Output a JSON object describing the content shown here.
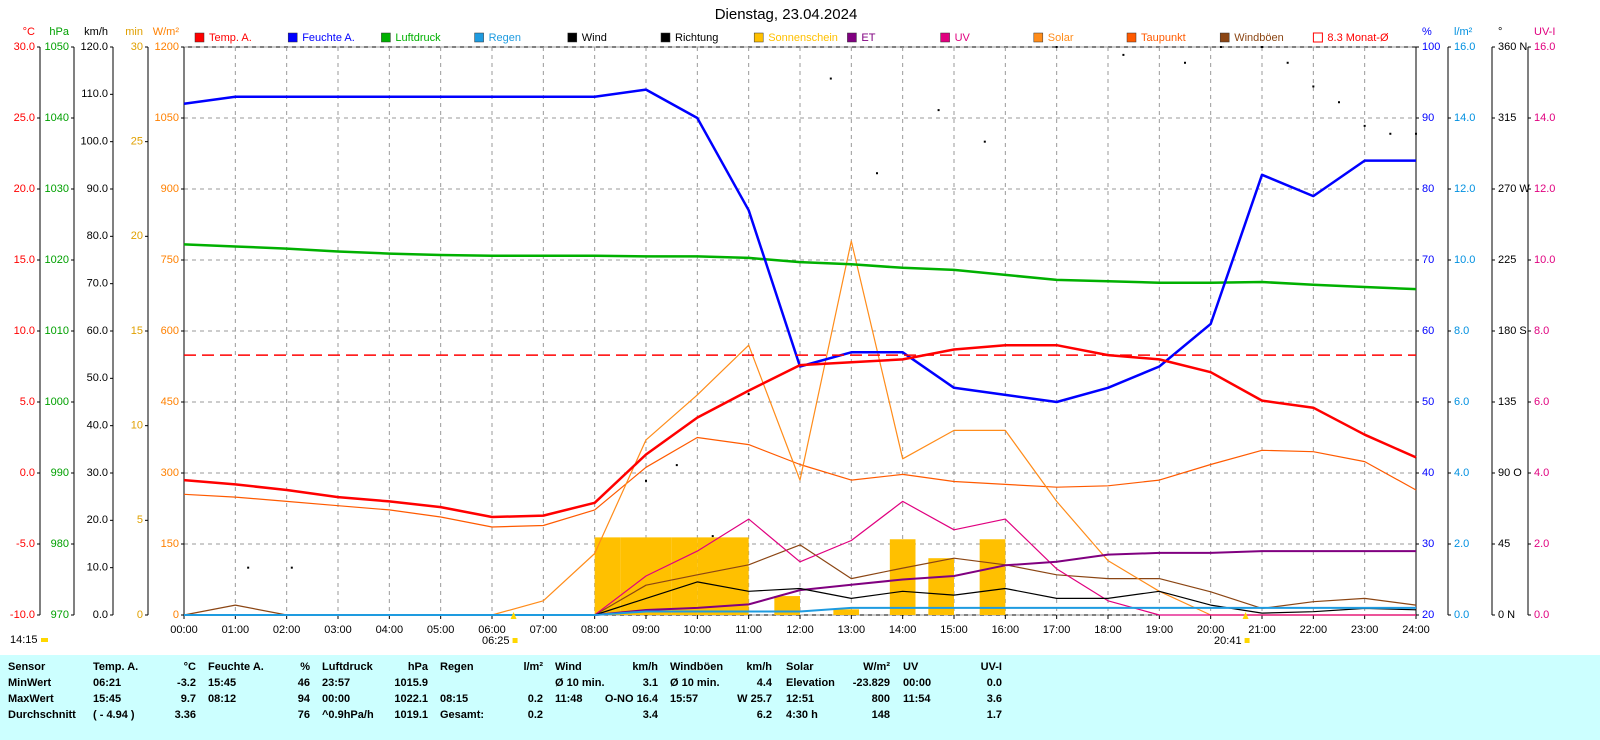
{
  "chart_data": {
    "type": "line",
    "title": "Dienstag, 23.04.2024",
    "updated": "14:15",
    "grid": true,
    "xlim": [
      0,
      24
    ],
    "xticks": [
      {
        "value": 0,
        "label": "00:00"
      },
      {
        "value": 1,
        "label": "01:00"
      },
      {
        "value": 2,
        "label": "02:00"
      },
      {
        "value": 3,
        "label": "03:00"
      },
      {
        "value": 4,
        "label": "04:00"
      },
      {
        "value": 5,
        "label": "05:00"
      },
      {
        "value": 6,
        "label": "06:00"
      },
      {
        "value": 7,
        "label": "07:00"
      },
      {
        "value": 8,
        "label": "08:00"
      },
      {
        "value": 9,
        "label": "09:00"
      },
      {
        "value": 10,
        "label": "10:00"
      },
      {
        "value": 11,
        "label": "11:00"
      },
      {
        "value": 12,
        "label": "12:00"
      },
      {
        "value": 13,
        "label": "13:00"
      },
      {
        "value": 14,
        "label": "14:00"
      },
      {
        "value": 15,
        "label": "15:00"
      },
      {
        "value": 16,
        "label": "16:00"
      },
      {
        "value": 17,
        "label": "17:00"
      },
      {
        "value": 18,
        "label": "18:00"
      },
      {
        "value": 19,
        "label": "19:00"
      },
      {
        "value": 20,
        "label": "20:00"
      },
      {
        "value": 21,
        "label": "21:00"
      },
      {
        "value": 22,
        "label": "22:00"
      },
      {
        "value": 23,
        "label": "23:00"
      },
      {
        "value": 24,
        "label": "24:00"
      }
    ],
    "axes": [
      {
        "unit": "°C",
        "color": "#ff0000",
        "lim": [
          -10,
          30
        ],
        "ticks": [
          {
            "value": -10,
            "label": "-10.0"
          },
          {
            "value": -5,
            "label": "-5.0"
          },
          {
            "value": 0,
            "label": "0.0"
          },
          {
            "value": 5,
            "label": "5.0"
          },
          {
            "value": 10,
            "label": "10.0"
          },
          {
            "value": 15,
            "label": "15.0"
          },
          {
            "value": 20,
            "label": "20.0"
          },
          {
            "value": 25,
            "label": "25.0"
          },
          {
            "value": 30,
            "label": "30.0"
          }
        ]
      },
      {
        "unit": "hPa",
        "color": "#00a000",
        "lim": [
          970,
          1050
        ],
        "ticks": [
          970,
          980,
          990,
          1000,
          1010,
          1020,
          1030,
          1040,
          1050
        ]
      },
      {
        "unit": "km/h",
        "color": "#000000",
        "lim": [
          0,
          120
        ],
        "ticks": [
          {
            "value": 0,
            "label": "0.0"
          },
          {
            "value": 10,
            "label": "10.0"
          },
          {
            "value": 20,
            "label": "20.0"
          },
          {
            "value": 30,
            "label": "30.0"
          },
          {
            "value": 40,
            "label": "40.0"
          },
          {
            "value": 50,
            "label": "50.0"
          },
          {
            "value": 60,
            "label": "60.0"
          },
          {
            "value": 70,
            "label": "70.0"
          },
          {
            "value": 80,
            "label": "80.0"
          },
          {
            "value": 90,
            "label": "90.0"
          },
          {
            "value": 100,
            "label": "100.0"
          },
          {
            "value": 110,
            "label": "110.0"
          },
          {
            "value": 120,
            "label": "120.0"
          }
        ]
      },
      {
        "unit": "min",
        "color": "#e0a000",
        "lim": [
          0,
          30
        ],
        "ticks": [
          0,
          5,
          10,
          15,
          20,
          25,
          30
        ]
      },
      {
        "unit": "W/m²",
        "color": "#ff8000",
        "lim": [
          0,
          1200
        ],
        "ticks": [
          0,
          150,
          300,
          450,
          600,
          750,
          900,
          1050,
          1200
        ]
      },
      {
        "unit": "%",
        "color": "#0000ff",
        "lim": [
          20,
          100
        ],
        "ticks": [
          20,
          30,
          40,
          50,
          60,
          70,
          80,
          90,
          100
        ]
      },
      {
        "unit": "l/m²",
        "color": "#0090e0",
        "lim": [
          0,
          16
        ],
        "ticks": [
          {
            "value": 0,
            "label": "0.0"
          },
          {
            "value": 2,
            "label": "2.0"
          },
          {
            "value": 4,
            "label": "4.0"
          },
          {
            "value": 6,
            "label": "6.0"
          },
          {
            "value": 8,
            "label": "8.0"
          },
          {
            "value": 10,
            "label": "10.0"
          },
          {
            "value": 12,
            "label": "12.0"
          },
          {
            "value": 14,
            "label": "14.0"
          },
          {
            "value": 16,
            "label": "16.0"
          }
        ]
      },
      {
        "unit": "°",
        "color": "#000000",
        "lim": [
          0,
          360
        ],
        "ticks": [
          {
            "value": 0,
            "label": "0 N"
          },
          45,
          {
            "value": 90,
            "label": "90 O"
          },
          135,
          {
            "value": 180,
            "label": "180 S"
          },
          225,
          {
            "value": 270,
            "label": "270 W"
          },
          315,
          {
            "value": 360,
            "label": "360 N"
          }
        ]
      },
      {
        "unit": "UV-I",
        "color": "#e0007f",
        "lim": [
          0,
          16
        ],
        "ticks": [
          {
            "value": 0,
            "label": "0.0"
          },
          {
            "value": 2,
            "label": "2.0"
          },
          {
            "value": 4,
            "label": "4.0"
          },
          {
            "value": 6,
            "label": "6.0"
          },
          {
            "value": 8,
            "label": "8.0"
          },
          {
            "value": 10,
            "label": "10.0"
          },
          {
            "value": 12,
            "label": "12.0"
          },
          {
            "value": 14,
            "label": "14.0"
          },
          {
            "value": 16,
            "label": "16.0"
          }
        ]
      }
    ],
    "x": [
      0,
      1,
      2,
      3,
      4,
      5,
      6,
      7,
      8,
      9,
      10,
      11,
      12,
      13,
      14,
      15,
      16,
      17,
      18,
      19,
      20,
      21,
      22,
      23,
      24
    ],
    "series": [
      {
        "name": "Temp. A.",
        "type": "line",
        "axis": "°C",
        "color": "#ff0000",
        "values": [
          -0.5,
          -0.8,
          -1.2,
          -1.7,
          -2.0,
          -2.4,
          -3.1,
          -3.0,
          -2.1,
          1.3,
          3.9,
          5.8,
          7.6,
          7.8,
          8.0,
          8.7,
          9.0,
          9.0,
          8.3,
          8.0,
          7.1,
          5.1,
          4.6,
          2.7,
          1.1
        ]
      },
      {
        "name": "Feuchte A.",
        "type": "line",
        "axis": "%",
        "color": "#0000ff",
        "values": [
          92,
          93,
          93,
          93,
          93,
          93,
          93,
          93,
          93,
          94,
          90,
          77,
          55,
          57,
          57,
          52,
          51,
          50,
          52,
          55,
          61,
          82,
          79,
          84,
          84
        ]
      },
      {
        "name": "Luftdruck",
        "type": "line",
        "axis": "hPa",
        "color": "#00b000",
        "values": [
          1022.2,
          1021.9,
          1021.6,
          1021.2,
          1020.9,
          1020.7,
          1020.6,
          1020.6,
          1020.6,
          1020.5,
          1020.5,
          1020.3,
          1019.7,
          1019.4,
          1018.9,
          1018.6,
          1017.9,
          1017.2,
          1017.0,
          1016.8,
          1016.8,
          1016.9,
          1016.5,
          1016.2,
          1015.9
        ]
      },
      {
        "name": "Regen",
        "type": "line",
        "axis": "l/m²",
        "color": "#1e9be0",
        "values": [
          0,
          0,
          0,
          0,
          0,
          0,
          0,
          0,
          0,
          0.1,
          0.1,
          0.1,
          0.1,
          0.2,
          0.2,
          0.2,
          0.2,
          0.2,
          0.2,
          0.2,
          0.2,
          0.2,
          0.2,
          0.2,
          0.2
        ]
      },
      {
        "name": "Wind",
        "type": "line",
        "axis": "km/h",
        "color": "#000000",
        "values": [
          0,
          0,
          0,
          0,
          0,
          0,
          0,
          0,
          0,
          3.5,
          7.0,
          5.0,
          5.6,
          3.5,
          5.0,
          4.2,
          5.6,
          3.5,
          3.5,
          5.0,
          2.1,
          0.4,
          0.7,
          1.4,
          1.1
        ]
      },
      {
        "name": "Richtung",
        "type": "scatter",
        "axis": "°",
        "color": "#000000",
        "x": [
          1.25,
          2.1,
          9.0,
          9.6,
          10.3,
          11.0,
          12.6,
          13.5,
          14.7,
          15.6,
          17.0,
          18.3,
          19.5,
          20.2,
          21.0,
          21.5,
          22.0,
          22.5,
          23.0,
          23.5,
          24.0
        ],
        "values": [
          30,
          30,
          85,
          95,
          50,
          140,
          340,
          280,
          320,
          300,
          360,
          355,
          350,
          360,
          360,
          350,
          335,
          325,
          310,
          305,
          305
        ]
      },
      {
        "name": "Sonnenschein",
        "type": "bar",
        "axis": "min",
        "color": "#ffc000",
        "x": [
          8.25,
          8.75,
          9.25,
          9.75,
          10.25,
          10.75,
          11.75,
          12.9,
          14.0,
          14.75,
          15.75
        ],
        "values": [
          4.1,
          4.1,
          4.1,
          4.1,
          4.1,
          4.1,
          1.0,
          0.3,
          4.0,
          3.0,
          4.0
        ]
      },
      {
        "name": "ET",
        "type": "line",
        "axis": "l/m²",
        "color": "#800080",
        "values": [
          0,
          0,
          0,
          0,
          0,
          0,
          0,
          0,
          0,
          0.14,
          0.2,
          0.3,
          0.7,
          0.85,
          1.0,
          1.1,
          1.4,
          1.5,
          1.7,
          1.75,
          1.75,
          1.8,
          1.8,
          1.8,
          1.8
        ]
      },
      {
        "name": "UV",
        "type": "line",
        "axis": "UV-I",
        "color": "#e0007f",
        "values": [
          0,
          0,
          0,
          0,
          0,
          0,
          0,
          0,
          0,
          1.1,
          1.8,
          2.7,
          1.5,
          2.1,
          3.2,
          2.4,
          2.7,
          1.3,
          0.4,
          0,
          0,
          0,
          0,
          0,
          0
        ]
      },
      {
        "name": "Solar",
        "type": "line",
        "axis": "W/m²",
        "color": "#ff8c1a",
        "values": [
          0,
          0,
          0,
          0,
          0,
          0,
          0,
          30,
          130,
          370,
          465,
          570,
          285,
          790,
          330,
          390,
          390,
          240,
          115,
          50,
          0,
          0,
          0,
          0,
          0
        ]
      },
      {
        "name": "Taupunkt",
        "type": "line",
        "axis": "°C",
        "color": "#ff5a00",
        "values": [
          -1.5,
          -1.7,
          -2.0,
          -2.3,
          -2.6,
          -3.1,
          -3.8,
          -3.7,
          -2.6,
          0.4,
          2.5,
          2.0,
          0.6,
          -0.5,
          -0.1,
          -0.6,
          -0.8,
          -1.0,
          -0.9,
          -0.5,
          0.6,
          1.6,
          1.5,
          0.8,
          -1.2
        ]
      },
      {
        "name": "Windböen",
        "type": "line",
        "axis": "km/h",
        "color": "#8b4513",
        "values": [
          0,
          2.1,
          0,
          0,
          0,
          0,
          0,
          0,
          0,
          6.3,
          8.5,
          10.6,
          14.8,
          7.7,
          9.9,
          12.0,
          10.6,
          8.5,
          7.7,
          7.7,
          4.9,
          1.4,
          2.8,
          3.5,
          2.1
        ]
      }
    ],
    "reference_lines": [
      {
        "label": "8.3 Monat-Ø",
        "value": 8.3,
        "axis": "°C",
        "color": "#ff0000"
      }
    ],
    "annotations": [
      {
        "text": "06:25",
        "x": 6.42
      },
      {
        "text": "20:41",
        "x": 20.68
      }
    ]
  },
  "table": {
    "header": [
      "Sensor",
      "Temp. A.",
      "°C",
      "Feuchte A.",
      "%",
      "Luftdruck",
      "hPa",
      "Regen",
      "l/m²",
      "Wind",
      "km/h",
      "Windböen",
      "km/h",
      "Solar",
      "W/m²",
      "UV",
      "UV-I"
    ],
    "rows": [
      [
        "MinWert",
        "06:21",
        "-3.2",
        "15:45",
        "46",
        "23:57",
        "1015.9",
        null,
        null,
        "Ø 10 min.",
        "3.1",
        "Ø 10 min.",
        "4.4",
        "Elevation",
        "-23.829",
        "00:00",
        "0.0"
      ],
      [
        "MaxWert",
        "15:45",
        "9.7",
        "08:12",
        "94",
        "00:00",
        "1022.1",
        "08:15",
        "0.2",
        "11:48",
        "O-NO 16.4",
        "15:57",
        "W 25.7",
        "12:51",
        "800",
        "11:54",
        "3.6"
      ],
      [
        "Durchschnitt",
        "( - 4.94 )",
        "3.36",
        null,
        "76",
        "^0.9hPa/h",
        "1019.1",
        "Gesamt:",
        "0.2",
        null,
        "3.4",
        null,
        "6.2",
        "4:30 h",
        "148",
        null,
        "1.7"
      ]
    ]
  }
}
